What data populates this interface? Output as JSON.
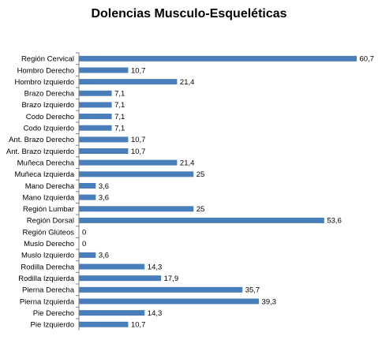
{
  "chart_data": {
    "type": "bar",
    "orientation": "horizontal",
    "title": "Dolencias Musculo-Esqueléticas",
    "xlabel": "",
    "ylabel": "",
    "xlim": [
      0,
      62
    ],
    "grid": false,
    "legend": "none",
    "bar_color": "#4a7ebb",
    "categories": [
      "Región Cervical",
      "Hombro Derecho",
      "Hombro Izquierdo",
      "Brazo Derecha",
      "Brazo Izquierdo",
      "Codo Derecho",
      "Codo Izquierdo",
      "Ant. Brazo Derecho",
      "Ant. Brazo Izquierdo",
      "Muñeca Derecha",
      "Muñeca Izquierda",
      "Mano Derecha",
      "Mano Izquierda",
      "Región Lumbar",
      "Región Dorsal",
      "Región Glúteos",
      "Muslo Derecho",
      "Muslo Izquierdo",
      "Rodilla Derecha",
      "Rodilla Izquierda",
      "Pierna Derecha",
      "Pierna Izquierda",
      "Pie Derecho",
      "Pie Izquierdo"
    ],
    "values": [
      60.7,
      10.7,
      21.4,
      7.1,
      7.1,
      7.1,
      7.1,
      10.7,
      10.7,
      21.4,
      25,
      3.6,
      3.6,
      25,
      53.6,
      0,
      0,
      3.6,
      14.3,
      17.9,
      35.7,
      39.3,
      14.3,
      10.7
    ],
    "value_labels": [
      "60,7",
      "10,7",
      "21,4",
      "7,1",
      "7,1",
      "7,1",
      "7,1",
      "10,7",
      "10,7",
      "21,4",
      "25",
      "3,6",
      "3,6",
      "25",
      "53,6",
      "0",
      "0",
      "3,6",
      "14,3",
      "17,9",
      "35,7",
      "39,3",
      "14,3",
      "10,7"
    ]
  }
}
